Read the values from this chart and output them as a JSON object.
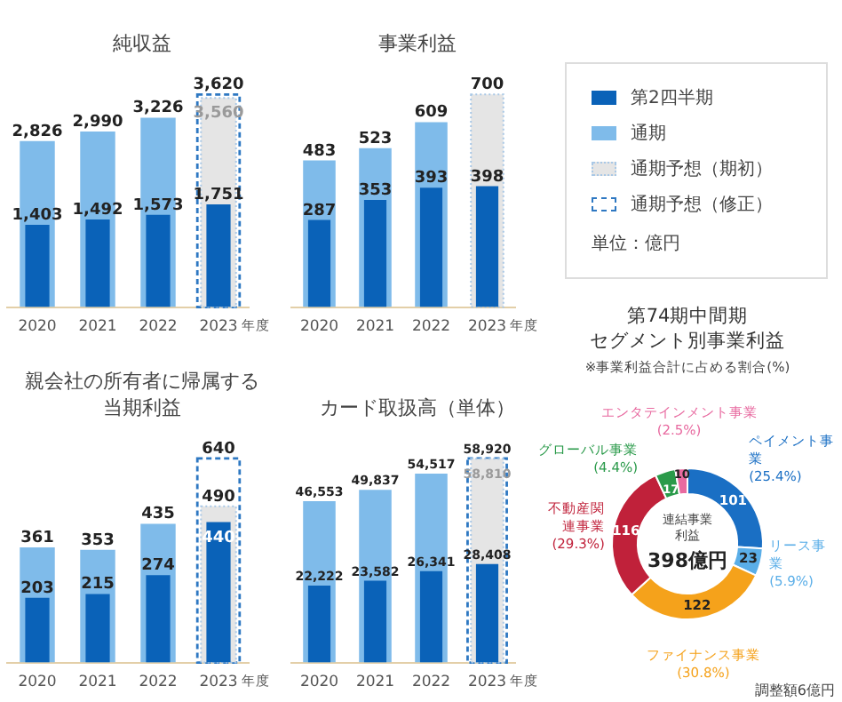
{
  "chart_data": [
    {
      "type": "bar",
      "title": "純収益",
      "categories": [
        "2020",
        "2021",
        "2022",
        "2023"
      ],
      "xlabel": "年度",
      "legend": "right",
      "annotations": [
        "単位：億円"
      ],
      "series": [
        {
          "name": "第2四半期",
          "color": "#0a62b8",
          "values": [
            1403,
            1492,
            1573,
            1751
          ],
          "value_labels": [
            "1,403",
            "1,492",
            "1,573",
            "1,751"
          ]
        },
        {
          "name": "通期",
          "color": "#7fbbea",
          "values": [
            2826,
            2990,
            3226,
            null
          ],
          "value_labels": [
            "2,826",
            "2,990",
            "3,226",
            null
          ]
        },
        {
          "name": "通期予想（期初）",
          "color": "#e5e5e5",
          "line_style": "dotted",
          "values": [
            null,
            null,
            null,
            3560
          ],
          "value_labels": [
            null,
            null,
            null,
            "3,560"
          ]
        },
        {
          "name": "通期予想（修正）",
          "color": "#2e78c2",
          "line_style": "dashed",
          "values": [
            null,
            null,
            null,
            3620
          ],
          "value_labels": [
            null,
            null,
            null,
            "3,620"
          ]
        }
      ]
    },
    {
      "type": "bar",
      "title": "事業利益",
      "categories": [
        "2020",
        "2021",
        "2022",
        "2023"
      ],
      "xlabel": "年度",
      "series": [
        {
          "color": "#0a62b8",
          "values": [
            287,
            353,
            393,
            398
          ],
          "value_labels": [
            "287",
            "353",
            "393",
            "398"
          ]
        },
        {
          "color": "#7fbbea",
          "values": [
            483,
            523,
            609,
            null
          ],
          "value_labels": [
            "483",
            "523",
            "609",
            null
          ]
        },
        {
          "color": "#e5e5e5",
          "line_style": "dotted",
          "values": [
            null,
            null,
            null,
            700
          ],
          "value_labels": [
            null,
            null,
            null,
            "700"
          ]
        }
      ]
    },
    {
      "type": "bar",
      "title": "親会社の所有者に帰属する当期利益",
      "categories": [
        "2020",
        "2021",
        "2022",
        "2023"
      ],
      "xlabel": "年度",
      "series": [
        {
          "color": "#0a62b8",
          "values": [
            203,
            215,
            274,
            440
          ],
          "value_labels": [
            "203",
            "215",
            "274",
            "440"
          ]
        },
        {
          "color": "#7fbbea",
          "values": [
            361,
            353,
            435,
            null
          ],
          "value_labels": [
            "361",
            "353",
            "435",
            null
          ]
        },
        {
          "color": "#e5e5e5",
          "line_style": "dotted",
          "values": [
            null,
            null,
            null,
            490
          ],
          "value_labels": [
            null,
            null,
            null,
            "490"
          ]
        },
        {
          "color": "#2e78c2",
          "line_style": "dashed",
          "values": [
            null,
            null,
            null,
            640
          ],
          "value_labels": [
            null,
            null,
            null,
            "640"
          ]
        }
      ]
    },
    {
      "type": "bar",
      "title": "カード取扱高（単体）",
      "categories": [
        "2020",
        "2021",
        "2022",
        "2023"
      ],
      "xlabel": "年度",
      "series": [
        {
          "color": "#0a62b8",
          "values": [
            22222,
            23582,
            26341,
            28408
          ],
          "value_labels": [
            "22,222",
            "23,582",
            "26,341",
            "28,408"
          ]
        },
        {
          "color": "#7fbbea",
          "values": [
            46553,
            49837,
            54517,
            null
          ],
          "value_labels": [
            "46,553",
            "49,837",
            "54,517",
            null
          ]
        },
        {
          "color": "#e5e5e5",
          "line_style": "dotted",
          "values": [
            null,
            null,
            null,
            58810
          ],
          "value_labels": [
            null,
            null,
            null,
            "58,810"
          ]
        },
        {
          "color": "#2e78c2",
          "line_style": "dashed",
          "values": [
            null,
            null,
            null,
            58920
          ],
          "value_labels": [
            null,
            null,
            null,
            "58,920"
          ]
        }
      ]
    },
    {
      "type": "donut",
      "title": "第74期中間期",
      "subtitle": "セグメント別事業利益",
      "categories": [
        "ペイメント事業 (25.4%)",
        "リース事業 (5.9%)",
        "ファイナンス事業 (30.8%)",
        "不動産関連事業 (29.3%)",
        "グローバル事業 (4.4%)",
        "エンタテインメント事業 (2.5%)"
      ],
      "values": [
        101,
        23,
        122,
        116,
        17,
        10
      ],
      "colors": [
        "#1a6fc4",
        "#5aaee8",
        "#f5a21b",
        "#c0213a",
        "#2a9a4a",
        "#e86aa0"
      ],
      "data_labels": true,
      "annotations": [
        "連結事業利益",
        "398億円",
        "調整額6億円",
        "※事業利益合計に占める割合(%)"
      ]
    }
  ]
}
